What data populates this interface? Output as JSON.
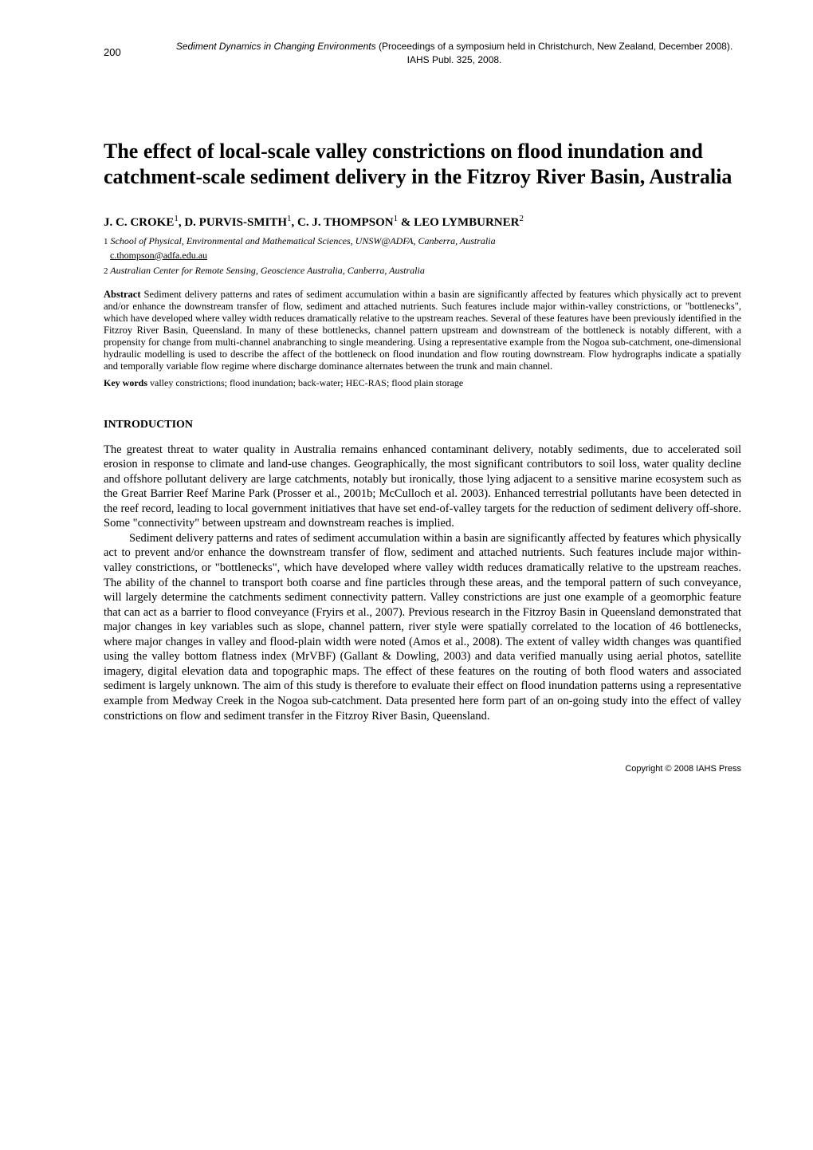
{
  "page_number": "200",
  "proceedings": {
    "title_italic": "Sediment Dynamics in Changing Environments",
    "rest": " (Proceedings of a symposium held in Christchurch, New Zealand, December 2008). IAHS Publ. 325, 2008."
  },
  "paper_title": "The effect of local-scale valley constrictions on flood inundation and catchment-scale sediment delivery in the Fitzroy River Basin, Australia",
  "authors_html": "J. C. CROKE<sup class=\"sup\">1</sup>, D. PURVIS-SMITH<sup class=\"sup\">1</sup>, C. J. THOMPSON<sup class=\"sup\">1</sup> & LEO LYMBURNER<sup class=\"sup\">2</sup>",
  "affiliations": [
    {
      "num": "1",
      "text": "School of Physical, Environmental and Mathematical Sciences, UNSW@ADFA, Canberra, Australia",
      "email": "c.thompson@adfa.edu.au"
    },
    {
      "num": "2",
      "text": "Australian Center for Remote Sensing, Geoscience Australia, Canberra, Australia",
      "email": null
    }
  ],
  "abstract_label": "Abstract",
  "abstract_text": " Sediment delivery patterns and rates of sediment accumulation within a basin are significantly affected by features which physically act to prevent and/or enhance the downstream transfer of flow, sediment and attached nutrients. Such features include major within-valley constrictions, or \"bottlenecks\", which have developed where valley width reduces dramatically relative to the upstream reaches. Several of these features have been previously identified in the Fitzroy River Basin, Queensland. In many of these bottlenecks, channel pattern upstream and downstream of the bottleneck is notably different, with a propensity for change from multi-channel anabranching to single meandering. Using a representative example from the Nogoa sub-catchment, one-dimensional hydraulic modelling is used to describe the affect of the bottleneck on flood inundation and flow routing downstream. Flow hydrographs indicate a spatially and temporally variable flow regime where discharge dominance alternates between the trunk and main channel.",
  "keywords_label": "Key words",
  "keywords_text": "  valley constrictions; flood inundation; back-water; HEC-RAS; flood plain storage",
  "section_heading": "INTRODUCTION",
  "para1": "The greatest threat to water quality in Australia remains enhanced contaminant delivery, notably sediments, due to accelerated soil erosion in response to climate and land-use changes. Geographically, the most significant contributors to soil loss, water quality decline and offshore pollutant delivery are large catchments, notably but ironically, those lying adjacent to a sensitive marine ecosystem such as the Great Barrier Reef Marine Park (Prosser et al., 2001b; McCulloch et al. 2003). Enhanced terrestrial pollutants have been detected in the reef record, leading to local government initiatives that have set end-of-valley targets for the reduction of sediment delivery off-shore. Some \"connectivity\" between upstream and downstream reaches is implied.",
  "para2": "Sediment delivery patterns and rates of sediment accumulation within a basin are significantly affected by features which physically act to prevent and/or enhance the downstream transfer of flow, sediment and attached nutrients. Such features include major within-valley constrictions, or \"bottlenecks\", which have developed where valley width reduces dramatically relative to the upstream reaches. The ability of the channel to transport both coarse and fine particles through these areas, and the temporal pattern of such conveyance, will largely determine the catchments sediment connectivity pattern. Valley constrictions are just one example of a geomorphic feature that can act as a barrier to flood conveyance (Fryirs et al., 2007). Previous research in the Fitzroy Basin in Queensland demonstrated that major changes in key variables such as slope, channel pattern, river style were spatially correlated to the location of 46 bottlenecks, where major changes in valley and flood-plain width were noted (Amos et al., 2008). The extent of valley width changes was quantified using the valley bottom flatness index (MrVBF) (Gallant & Dowling, 2003) and data verified manually using aerial photos, satellite imagery, digital elevation data and topographic maps. The effect of these features on the routing of both flood waters and associated sediment is largely unknown. The aim of this study is therefore to evaluate their effect on flood inundation patterns using a representative example from Medway Creek in the Nogoa sub-catchment. Data presented here form part of an on-going study into the effect of valley constrictions on flow and sediment transfer in the Fitzroy River Basin, Queensland.",
  "copyright": "Copyright © 2008 IAHS Press"
}
